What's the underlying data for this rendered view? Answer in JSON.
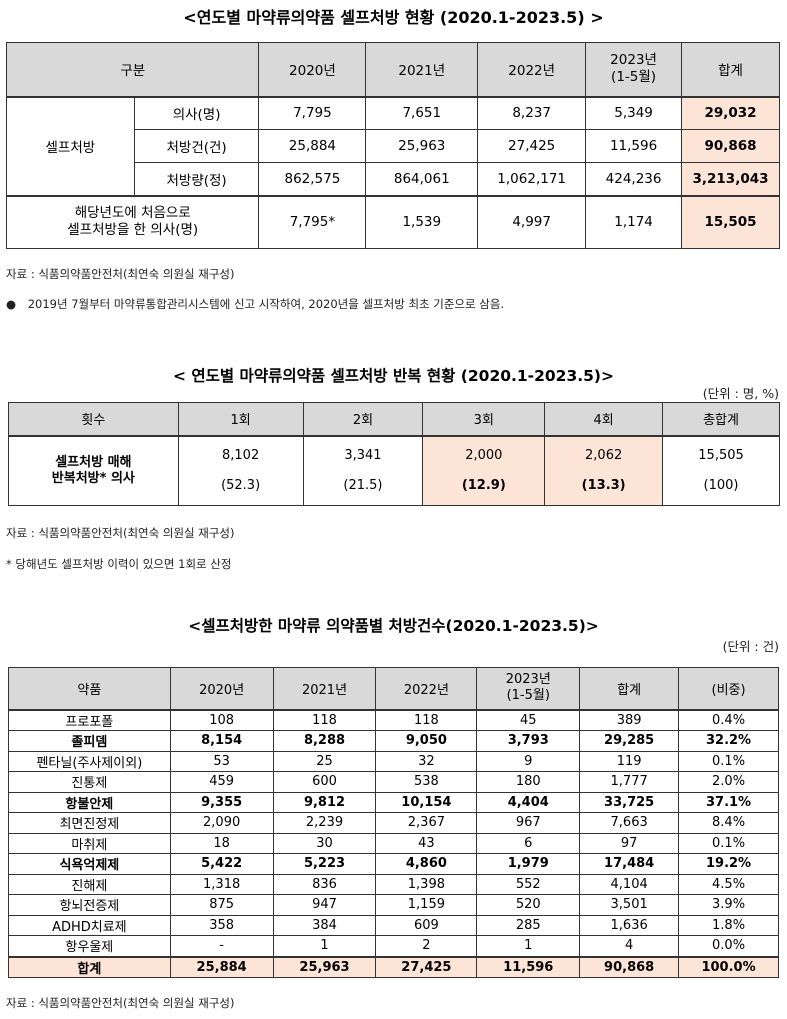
{
  "table1": {
    "title": "<연도별 마약류의약품 셀프처방 현황 (2020.1-2023.5) >",
    "headers": [
      "구분",
      "2020년",
      "2021년",
      "2022년",
      "2023년",
      "(1-5월)",
      "합계"
    ],
    "group_label": "셀프처방",
    "rows": [
      {
        "label": "의사(명)",
        "values": [
          "7,795",
          "7,651",
          "8,237",
          "5,349",
          "29,032"
        ]
      },
      {
        "label": "처방건(건)",
        "values": [
          "25,884",
          "25,963",
          "27,425",
          "11,596",
          "90,868"
        ]
      },
      {
        "label": "처방량(정)",
        "values": [
          "862,575",
          "864,061",
          "1,062,171",
          "424,236",
          "3,213,043"
        ]
      }
    ],
    "last_row": {
      "label_line1": "해당년도에 처음으로",
      "label_line2": "셀프처방을 한 의사(명)",
      "values": [
        "7,795*",
        "1,539",
        "4,997",
        "1,174",
        "15,505"
      ]
    },
    "source": "자료 : 식품의약품안전처(최연숙 의원실 재구성)",
    "bullet_note": "2019년 7월부터 마약류통합관리시스템에 신고 시작하여, 2020년을 셀프처방 최초 기준으로 삼음."
  },
  "table2": {
    "title": "< 연도별 마약류의약품 셀프처방 반복 현황 (2020.1-2023.5)>",
    "unit": "(단위 : 명, %)",
    "headers": [
      "횟수",
      "1회",
      "2회",
      "3회",
      "4회",
      "총합계"
    ],
    "row_label_line1": "셀프처방 매해",
    "row_label_line2": "반복처방* 의사",
    "counts": [
      "8,102",
      "3,341",
      "2,000",
      "2,062",
      "15,505"
    ],
    "percents": [
      "(52.3)",
      "(21.5)",
      "(12.9)",
      "(13.3)",
      "(100)"
    ],
    "source": "자료 : 식품의약품안전처(최연숙 의원실 재구성)",
    "footnote": "* 당해년도 셀프처방 이력이 있으면 1회로 산정"
  },
  "table3": {
    "title": "<셀프처방한 마약류 의약품별 처방건수(2020.1-2023.5)>",
    "unit": "(단위 : 건)",
    "headers": [
      "약품",
      "2020년",
      "2021년",
      "2022년",
      "2023년",
      "(1-5월)",
      "합계",
      "(비중)"
    ],
    "rows": [
      {
        "name": "프로포폴",
        "values": [
          "108",
          "118",
          "118",
          "45",
          "389",
          "0.4%"
        ],
        "bold": false
      },
      {
        "name": "졸피뎀",
        "values": [
          "8,154",
          "8,288",
          "9,050",
          "3,793",
          "29,285",
          "32.2%"
        ],
        "bold": true
      },
      {
        "name": "펜타닐(주사제이외)",
        "values": [
          "53",
          "25",
          "32",
          "9",
          "119",
          "0.1%"
        ],
        "bold": false
      },
      {
        "name": "진통제",
        "values": [
          "459",
          "600",
          "538",
          "180",
          "1,777",
          "2.0%"
        ],
        "bold": false
      },
      {
        "name": "항불안제",
        "values": [
          "9,355",
          "9,812",
          "10,154",
          "4,404",
          "33,725",
          "37.1%"
        ],
        "bold": true
      },
      {
        "name": "최면진정제",
        "values": [
          "2,090",
          "2,239",
          "2,367",
          "967",
          "7,663",
          "8.4%"
        ],
        "bold": false
      },
      {
        "name": "마취제",
        "values": [
          "18",
          "30",
          "43",
          "6",
          "97",
          "0.1%"
        ],
        "bold": false
      },
      {
        "name": "식욕억제제",
        "values": [
          "5,422",
          "5,223",
          "4,860",
          "1,979",
          "17,484",
          "19.2%"
        ],
        "bold": true
      },
      {
        "name": "진해제",
        "values": [
          "1,318",
          "836",
          "1,398",
          "552",
          "4,104",
          "4.5%"
        ],
        "bold": false
      },
      {
        "name": "항뇌전증제",
        "values": [
          "875",
          "947",
          "1,159",
          "520",
          "3,501",
          "3.9%"
        ],
        "bold": false
      },
      {
        "name": "ADHD치료제",
        "values": [
          "358",
          "384",
          "609",
          "285",
          "1,636",
          "1.8%"
        ],
        "bold": false
      },
      {
        "name": "항우울제",
        "values": [
          "-",
          "1",
          "2",
          "1",
          "4",
          "0.0%"
        ],
        "bold": false
      }
    ],
    "total": {
      "name": "합계",
      "values": [
        "25,884",
        "25,963",
        "27,425",
        "11,596",
        "90,868",
        "100.0%"
      ]
    },
    "source": "자료 : 식품의약품안전처(최연숙 의원실 재구성)"
  }
}
